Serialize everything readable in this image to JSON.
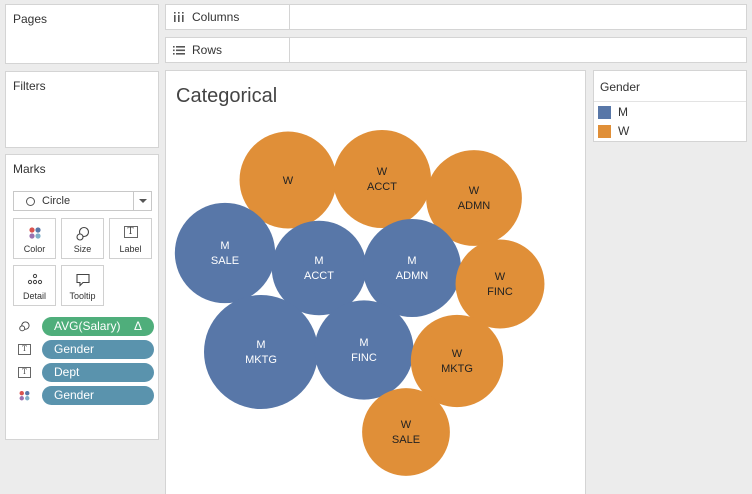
{
  "pages": {
    "title": "Pages"
  },
  "filters": {
    "title": "Filters"
  },
  "columns": {
    "label": "Columns",
    "icon": "columns-icon"
  },
  "rows": {
    "label": "Rows",
    "icon": "rows-icon"
  },
  "marks": {
    "title": "Marks",
    "mark_type": "Circle",
    "buttons": {
      "color": "Color",
      "size": "Size",
      "label": "Label",
      "detail": "Detail",
      "tooltip": "Tooltip"
    },
    "pills": [
      {
        "field": "AVG(Salary)",
        "kind": "size",
        "color": "#4fae7b",
        "delta": "Δ"
      },
      {
        "field": "Gender",
        "kind": "text",
        "color": "#5a93ad"
      },
      {
        "field": "Dept",
        "kind": "text",
        "color": "#5a93ad"
      },
      {
        "field": "Gender",
        "kind": "color",
        "color": "#5a93ad"
      }
    ]
  },
  "viz": {
    "title": "Categorical"
  },
  "legend": {
    "title": "Gender",
    "items": [
      {
        "label": "M",
        "color": "#5877a8"
      },
      {
        "label": "W",
        "color": "#e08f38"
      }
    ]
  },
  "chart_data": {
    "type": "packed-bubble",
    "title": "Categorical",
    "size_field": "AVG(Salary)",
    "color_field": "Gender",
    "bubbles": [
      {
        "gender": "W",
        "dept": "",
        "relative_size": 0.85
      },
      {
        "gender": "W",
        "dept": "ACCT",
        "relative_size": 0.86
      },
      {
        "gender": "W",
        "dept": "ADMN",
        "relative_size": 0.84
      },
      {
        "gender": "M",
        "dept": "SALE",
        "relative_size": 0.88
      },
      {
        "gender": "M",
        "dept": "ACCT",
        "relative_size": 0.83
      },
      {
        "gender": "M",
        "dept": "ADMN",
        "relative_size": 0.86
      },
      {
        "gender": "W",
        "dept": "FINC",
        "relative_size": 0.78
      },
      {
        "gender": "M",
        "dept": "MKTG",
        "relative_size": 1.0
      },
      {
        "gender": "M",
        "dept": "FINC",
        "relative_size": 0.87
      },
      {
        "gender": "W",
        "dept": "MKTG",
        "relative_size": 0.81
      },
      {
        "gender": "W",
        "dept": "SALE",
        "relative_size": 0.77
      }
    ]
  }
}
